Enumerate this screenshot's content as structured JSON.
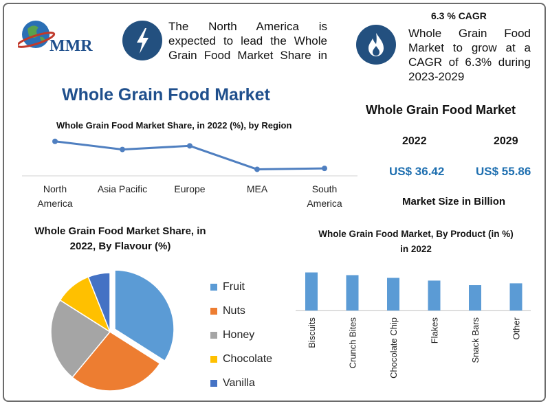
{
  "brand": {
    "logo_text": "MMR"
  },
  "callout_region": {
    "text": "The North America is expected to lead the Whole Grain Food Market Share in"
  },
  "callout_cagr": {
    "heading": "6.3 % CAGR",
    "text": "Whole Grain Food Market to grow at a CAGR of 6.3% during 2023-2029"
  },
  "main_title": "Whole Grain Food Market",
  "market_size": {
    "title": "Whole Grain Food Market",
    "year_a": "2022",
    "value_a": "US$ 36.42",
    "year_b": "2029",
    "value_b": "US$ 55.86",
    "caption": "Market Size in Billion"
  },
  "colors": {
    "accent_blue": "#5b9bd5",
    "orange": "#ed7d31",
    "gray": "#a5a5a5",
    "yellow": "#ffc000",
    "navy": "#4472c4",
    "title_blue": "#1f4f8c"
  },
  "chart_data": [
    {
      "type": "line",
      "title": "Whole Grain Food Market Share, in 2022 (%), by Region",
      "categories": [
        "North America",
        "Asia Pacific",
        "Europe",
        "MEA",
        "South America"
      ],
      "values": [
        36,
        27,
        31,
        5,
        6
      ],
      "ylim": [
        0,
        60
      ],
      "grid": false
    },
    {
      "type": "pie",
      "title": "Whole Grain Food Market Share, in 2022, By Flavour (%)",
      "labels": [
        "Fruit",
        "Nuts",
        "Honey",
        "Chocolate",
        "Vanilla"
      ],
      "values": [
        34,
        27,
        23,
        10,
        6
      ],
      "legend_position": "right"
    },
    {
      "type": "bar",
      "title": "Whole Grain Food Market, By Product (in %) in 2022",
      "categories": [
        "Biscuits",
        "Crunch Bites",
        "Chocolate Chip",
        "Flakes",
        "Snack Bars",
        "Other"
      ],
      "values": [
        21,
        19.5,
        18,
        16.5,
        14,
        15
      ],
      "ylim": [
        0,
        25
      ]
    }
  ]
}
